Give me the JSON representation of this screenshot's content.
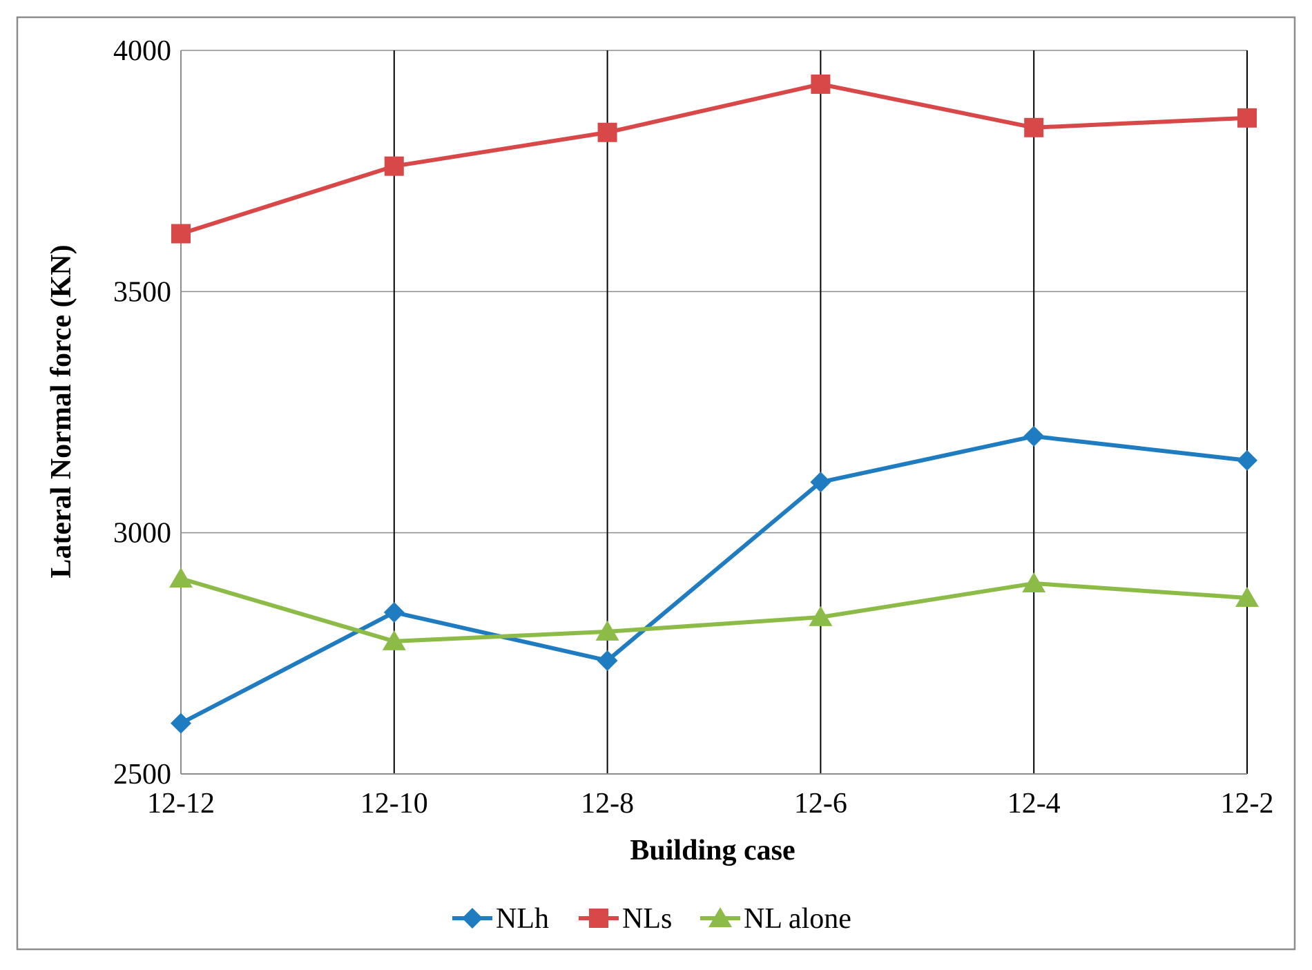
{
  "chart_data": {
    "type": "line",
    "title": "",
    "xlabel": "Building case",
    "ylabel": "Lateral Normal force (KN)",
    "categories": [
      "12-12",
      "12-10",
      "12-8",
      "12-6",
      "12-4",
      "12-2"
    ],
    "ylim": [
      2500,
      4000
    ],
    "yticks": [
      2500,
      3000,
      3500,
      4000
    ],
    "grid": true,
    "legend_position": "bottom",
    "series": [
      {
        "name": "NLh",
        "color": "#1f7cc1",
        "marker": "diamond",
        "values": [
          2605,
          2835,
          2735,
          3105,
          3200,
          3150
        ]
      },
      {
        "name": "NLs",
        "color": "#d94848",
        "marker": "square",
        "values": [
          3620,
          3760,
          3830,
          3930,
          3840,
          3860
        ]
      },
      {
        "name": "NL alone",
        "color": "#8cbb48",
        "marker": "triangle",
        "values": [
          2905,
          2775,
          2795,
          2825,
          2895,
          2865
        ]
      }
    ]
  }
}
